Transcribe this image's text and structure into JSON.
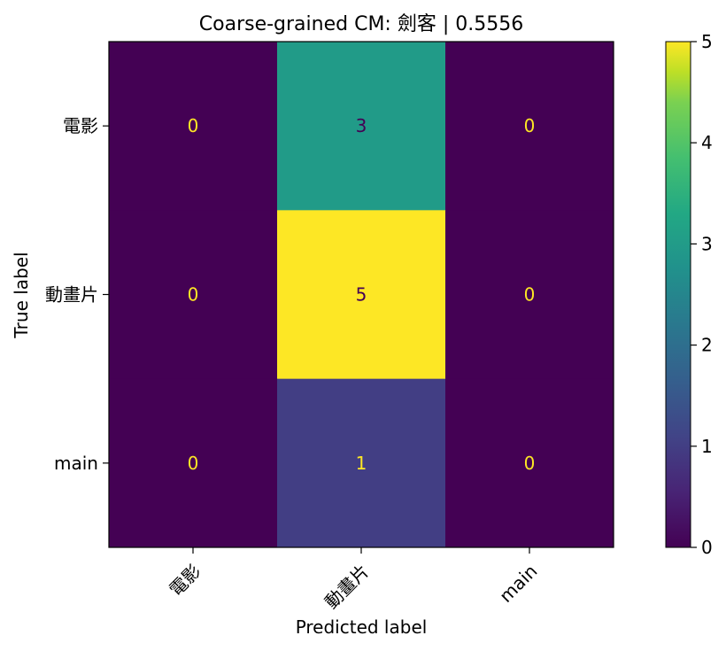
{
  "chart_data": {
    "type": "heatmap",
    "title": "Coarse-grained CM: 劍客 | 0.5556",
    "xlabel": "Predicted label",
    "ylabel": "True label",
    "x_categories": [
      "電影",
      "動畫片",
      "main"
    ],
    "y_categories": [
      "電影",
      "動畫片",
      "main"
    ],
    "matrix": [
      [
        0,
        3,
        0
      ],
      [
        0,
        5,
        0
      ],
      [
        0,
        1,
        0
      ]
    ],
    "colorbar": {
      "min": 0,
      "max": 5,
      "ticks": [
        "0",
        "1",
        "2",
        "3",
        "4",
        "5"
      ],
      "colormap": "viridis"
    },
    "grid": false
  },
  "colors": {
    "text_on_dark": "#fde725",
    "text_on_light": "#440154",
    "axis": "#000000"
  }
}
